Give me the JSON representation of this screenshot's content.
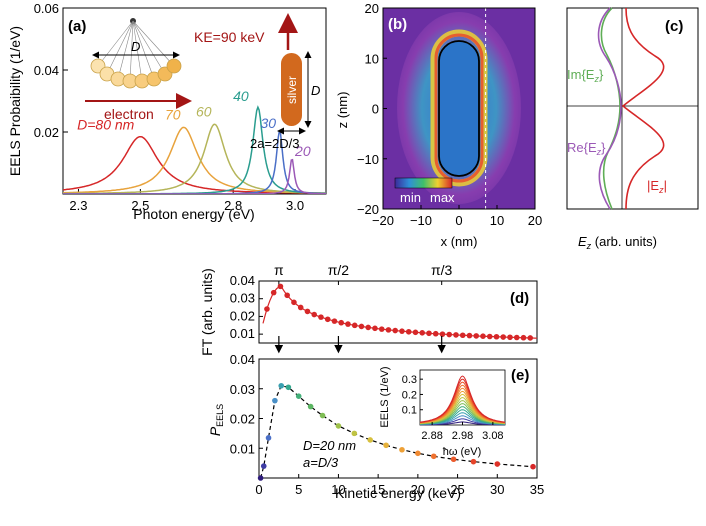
{
  "colors": {
    "red": "#d62728",
    "green": "#5fad56",
    "purple": "#9b59b6",
    "teal": "#2a9d8f",
    "blue": "#4a6fc7",
    "olive": "#b5b55a",
    "orange": "#e8a33d",
    "rod_fill": "#d2691e",
    "dark_red": "#a31515"
  },
  "chart_data": [
    {
      "type": "line",
      "panel": "(a)",
      "xlabel": "Photon energy (eV)",
      "ylabel": "EELS Probaibility (1/eV)",
      "xlim": [
        2.25,
        3.1
      ],
      "ylim": [
        0,
        0.06
      ],
      "xticks": [
        "2.3",
        "2.5",
        "2.8",
        "3.0"
      ],
      "xtick_values": [
        2.3,
        2.5,
        2.8,
        3.0
      ],
      "yticks": [
        "0.02",
        "0.04",
        "0.06"
      ],
      "ytick_values": [
        0.02,
        0.04,
        0.06
      ],
      "annotations": {
        "ke": "KE=90 keV",
        "electron": "electron",
        "silver": "silver",
        "rod_d": "D",
        "pendulum_d": "D",
        "width": "2a=2D/3"
      },
      "series": [
        {
          "name": "D=80 nm",
          "label": "D=80 nm",
          "peak_x": 2.5,
          "peak_y": 0.0185,
          "width": 0.14,
          "color": "#d62728"
        },
        {
          "name": "70",
          "label": "70",
          "peak_x": 2.64,
          "peak_y": 0.0215,
          "width": 0.11,
          "color": "#e8a33d"
        },
        {
          "name": "60",
          "label": "60",
          "peak_x": 2.74,
          "peak_y": 0.0225,
          "width": 0.085,
          "color": "#b5b55a"
        },
        {
          "name": "40",
          "label": "40",
          "peak_x": 2.88,
          "peak_y": 0.028,
          "width": 0.04,
          "color": "#2a9d8f"
        },
        {
          "name": "30",
          "label": "30",
          "peak_x": 2.95,
          "peak_y": 0.0205,
          "width": 0.025,
          "color": "#4a6fc7"
        },
        {
          "name": "20",
          "label": "20",
          "peak_x": 2.99,
          "peak_y": 0.0115,
          "width": 0.018,
          "color": "#9b59b6"
        }
      ]
    },
    {
      "type": "heatmap",
      "panel": "(b)",
      "xlabel": "x (nm)",
      "ylabel": "z (nm)",
      "xlim": [
        -20,
        20
      ],
      "ylim": [
        -20,
        20
      ],
      "xticks": [
        "−20",
        "−10",
        "0",
        "10",
        "20"
      ],
      "xtick_values": [
        -20,
        -10,
        0,
        10,
        20
      ],
      "yticks": [
        "−20",
        "−10",
        "0",
        "10",
        "20"
      ],
      "ytick_values": [
        -20,
        -10,
        0,
        10,
        20
      ],
      "colorbar": {
        "min_label": "min",
        "max_label": "max"
      },
      "rod": {
        "half_width": 6.67,
        "half_length": 10
      },
      "dashed_line_x": 7
    },
    {
      "type": "line",
      "panel": "(c)",
      "xlabel": "E_z (arb. units)",
      "series": [
        {
          "name": "Im{Ez}",
          "label": "Im{E",
          "sub": "z",
          "color": "#5fad56"
        },
        {
          "name": "Re{Ez}",
          "label": "Re{E",
          "sub": "z",
          "color": "#9b59b6"
        },
        {
          "name": "|Ez|",
          "label": "|E",
          "sub": "z",
          "color": "#d62728"
        }
      ]
    },
    {
      "type": "scatter",
      "panel": "(d)",
      "ylabel": "FT (arb. units)",
      "xlim": [
        0,
        35
      ],
      "ylim": [
        0.005,
        0.04
      ],
      "yticks": [
        "0.01",
        "0.02",
        "0.03",
        "0.04"
      ],
      "ytick_values": [
        0.01,
        0.02,
        0.03,
        0.04
      ],
      "top_ticks": [
        "π",
        "π/2",
        "π/3"
      ],
      "top_tick_x": [
        2.5,
        10,
        23
      ]
    },
    {
      "type": "scatter",
      "panel": "(e)",
      "xlabel": "Kinetic energy (keV)",
      "ylabel": "P",
      "ylabel_sub": "EELS",
      "xlim": [
        0,
        35
      ],
      "ylim": [
        0,
        0.04
      ],
      "xticks": [
        "0",
        "5",
        "10",
        "15",
        "20",
        "25",
        "30",
        "35"
      ],
      "xtick_values": [
        0,
        5,
        10,
        15,
        20,
        25,
        30,
        35
      ],
      "yticks": [
        "0.01",
        "0.02",
        "0.03",
        "0.04"
      ],
      "ytick_values": [
        0.01,
        0.02,
        0.03,
        0.04
      ],
      "legend_d": "D=20 nm",
      "legend_a": "a=D/3",
      "points_x": [
        0.2,
        0.6,
        1.2,
        2.0,
        2.8,
        3.7,
        5.0,
        6.5,
        8.0,
        10.0,
        12.0,
        14.0,
        16.0,
        18.0,
        20.0,
        22.0,
        24.5,
        27.0,
        30.0,
        34.5
      ],
      "points_y": [
        0.0,
        0.004,
        0.0135,
        0.026,
        0.031,
        0.0305,
        0.0275,
        0.024,
        0.021,
        0.0175,
        0.015,
        0.0128,
        0.011,
        0.0095,
        0.0083,
        0.0073,
        0.0063,
        0.0055,
        0.0047,
        0.0038
      ],
      "point_colors": [
        "#2d1a7a",
        "#3f3da4",
        "#4a6fc7",
        "#4a90c7",
        "#3aa0b0",
        "#35a98f",
        "#45b07a",
        "#5cb663",
        "#7fbd55",
        "#9fc24a",
        "#bfc343",
        "#d7c03d",
        "#e6b139",
        "#eea036",
        "#f08a32",
        "#ef7230",
        "#ec5b2d",
        "#e6452a",
        "#de3127",
        "#d62728"
      ],
      "inset": {
        "xlabel": "ħω (eV)",
        "ylabel": "EELS (1/eV)",
        "xticks": [
          "2.88",
          "2.98",
          "3.08"
        ],
        "xtick_values": [
          2.88,
          2.98,
          3.08
        ],
        "yticks": [
          "0.1",
          "0.2",
          "0.3"
        ],
        "ytick_values": [
          0.1,
          0.2,
          0.3
        ],
        "peak_x": 2.98,
        "peak_heights": [
          0.02,
          0.04,
          0.06,
          0.08,
          0.1,
          0.12,
          0.14,
          0.16,
          0.18,
          0.2,
          0.22,
          0.24,
          0.26,
          0.28,
          0.3,
          0.32
        ]
      }
    }
  ]
}
